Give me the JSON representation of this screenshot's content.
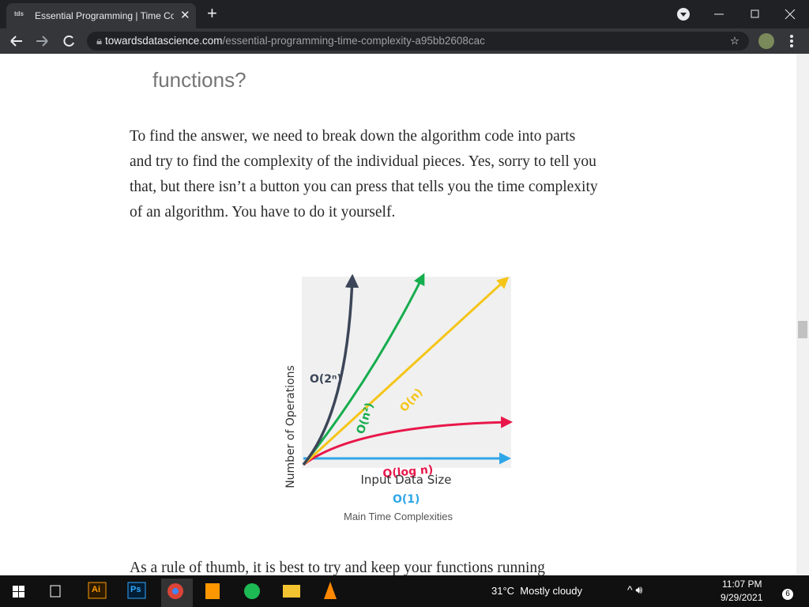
{
  "browser": {
    "tab_icon": "tds",
    "tab_title": "Essential Programming | Time Co",
    "url_domain": "towardsdatascience.com",
    "url_path": "/essential-programming-time-complexity-a95bb2608cac"
  },
  "article": {
    "heading_fragment": "functions?",
    "paragraph_lines": [
      "To find the answer, we need to break down the algorithm code into parts",
      "and try to find the complexity of the individual pieces. Yes, sorry to tell you",
      "that, but there isn’t a button you can press that tells you the time complexity",
      "of an algorithm. You have to do it yourself."
    ],
    "figure": {
      "y_label": "Number of Operations",
      "x_label": "Input Data Size",
      "curve_labels": [
        "O(2ⁿ)",
        "O(n²)",
        "O(n)",
        "O(log n)",
        "O(1)"
      ],
      "caption": "Main Time Complexities"
    },
    "next_paragraph": "As a rule of thumb, it is best to try and keep your functions running"
  },
  "taskbar": {
    "apps": [
      "Ai",
      "Ps"
    ],
    "weather": "31°C  Mostly cloudy",
    "time": "11:07 PM",
    "date": "9/29/2021",
    "notifications": "6"
  }
}
